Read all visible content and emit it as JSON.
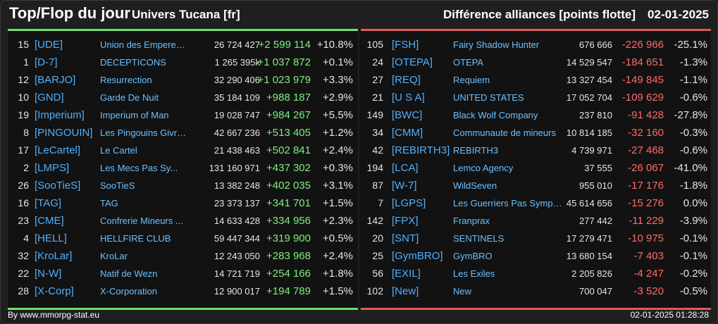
{
  "header": {
    "title": "Top/Flop du jour",
    "universe": "Univers Tucana [fr]",
    "subtitle": "Différence alliances [points flotte]",
    "date": "02-01-2025"
  },
  "colors": {
    "up": "#7cf07c",
    "down": "#ff6a6a",
    "tag": "#4fb0ff",
    "name": "#6cc0ff",
    "top_bar": "#6ee06e",
    "flop_bar": "#e05a5a"
  },
  "top": [
    {
      "rank": "15",
      "tag": "[UDE]",
      "name": "Union des Empereur...",
      "points": "26 724 427",
      "diff": "+2 599 114",
      "pct": "+10.8%"
    },
    {
      "rank": "1",
      "tag": "[D-7]",
      "name": "DECEPTICONS",
      "points": "1 265 395k",
      "diff": "+1 037 872",
      "pct": "+0.1%"
    },
    {
      "rank": "12",
      "tag": "[BARJO]",
      "name": "Resurrection",
      "points": "32 290 406",
      "diff": "+1 023 979",
      "pct": "+3.3%"
    },
    {
      "rank": "10",
      "tag": "[GND]",
      "name": "Garde De Nuit",
      "points": "35 184 109",
      "diff": "+988 187",
      "pct": "+2.9%"
    },
    {
      "rank": "19",
      "tag": "[Imperium]",
      "name": "Imperium of Man",
      "points": "19 028 747",
      "diff": "+984 267",
      "pct": "+5.5%"
    },
    {
      "rank": "8",
      "tag": "[PINGOUIN]",
      "name": "Les Pingouins Givre...",
      "points": "42 667 236",
      "diff": "+513 405",
      "pct": "+1.2%"
    },
    {
      "rank": "17",
      "tag": "[LeCartel]",
      "name": "Le Cartel",
      "points": "21 438 463",
      "diff": "+502 841",
      "pct": "+2.4%"
    },
    {
      "rank": "2",
      "tag": "[LMPS]",
      "name": "Les Mecs Pas Sy...",
      "points": "131 160 971",
      "diff": "+437 302",
      "pct": "+0.3%"
    },
    {
      "rank": "26",
      "tag": "[SooTieS]",
      "name": "SooTieS",
      "points": "13 382 248",
      "diff": "+402 035",
      "pct": "+3.1%"
    },
    {
      "rank": "16",
      "tag": "[TAG]",
      "name": "TAG",
      "points": "23 373 137",
      "diff": "+341 701",
      "pct": "+1.5%"
    },
    {
      "rank": "23",
      "tag": "[CME]",
      "name": "Confrerie Mineurs ...",
      "points": "14 633 428",
      "diff": "+334 956",
      "pct": "+2.3%"
    },
    {
      "rank": "4",
      "tag": "[HELL]",
      "name": "HELLFIRE CLUB",
      "points": "59 447 344",
      "diff": "+319 900",
      "pct": "+0.5%"
    },
    {
      "rank": "32",
      "tag": "[KroLar]",
      "name": "KroLar",
      "points": "12 243 050",
      "diff": "+283 968",
      "pct": "+2.4%"
    },
    {
      "rank": "22",
      "tag": "[N-W]",
      "name": "Natif de Wezn",
      "points": "14 721 719",
      "diff": "+254 166",
      "pct": "+1.8%"
    },
    {
      "rank": "28",
      "tag": "[X-Corp]",
      "name": "X-Corporation",
      "points": "12 900 017",
      "diff": "+194 789",
      "pct": "+1.5%"
    }
  ],
  "flop": [
    {
      "rank": "105",
      "tag": "[FSH]",
      "name": "Fairy Shadow Hunter",
      "points": "676 666",
      "diff": "-226 966",
      "pct": "-25.1%"
    },
    {
      "rank": "24",
      "tag": "[OTEPA]",
      "name": "OTEPA",
      "points": "14 529 547",
      "diff": "-184 651",
      "pct": "-1.3%"
    },
    {
      "rank": "27",
      "tag": "[REQ]",
      "name": "Requiem",
      "points": "13 327 454",
      "diff": "-149 845",
      "pct": "-1.1%"
    },
    {
      "rank": "21",
      "tag": "[U S A]",
      "name": "UNITED STATES",
      "points": "17 052 704",
      "diff": "-109 629",
      "pct": "-0.6%"
    },
    {
      "rank": "149",
      "tag": "[BWC]",
      "name": "Black Wolf Company",
      "points": "237 810",
      "diff": "-91 428",
      "pct": "-27.8%"
    },
    {
      "rank": "34",
      "tag": "[CMM]",
      "name": "Communaute de mineurs",
      "points": "10 814 185",
      "diff": "-32 160",
      "pct": "-0.3%"
    },
    {
      "rank": "42",
      "tag": "[REBIRTH3]",
      "name": "REBIRTH3",
      "points": "4 739 971",
      "diff": "-27 468",
      "pct": "-0.6%"
    },
    {
      "rank": "194",
      "tag": "[LCA]",
      "name": "Lemco Agency",
      "points": "37 555",
      "diff": "-26 067",
      "pct": "-41.0%"
    },
    {
      "rank": "87",
      "tag": "[W-7]",
      "name": "WildSeven",
      "points": "955 010",
      "diff": "-17 176",
      "pct": "-1.8%"
    },
    {
      "rank": "7",
      "tag": "[LGPS]",
      "name": "Les Guerriers Pas Sympas",
      "points": "45 614 656",
      "diff": "-15 276",
      "pct": "0.0%"
    },
    {
      "rank": "142",
      "tag": "[FPX]",
      "name": "Franprax",
      "points": "277 442",
      "diff": "-11 229",
      "pct": "-3.9%"
    },
    {
      "rank": "20",
      "tag": "[SNT]",
      "name": "SENTINELS",
      "points": "17 279 471",
      "diff": "-10 975",
      "pct": "-0.1%"
    },
    {
      "rank": "25",
      "tag": "[GymBRO]",
      "name": "GymBRO",
      "points": "13 680 154",
      "diff": "-7 403",
      "pct": "-0.1%"
    },
    {
      "rank": "56",
      "tag": "[EXIL]",
      "name": "Les Exiles",
      "points": "2 205 826",
      "diff": "-4 247",
      "pct": "-0.2%"
    },
    {
      "rank": "102",
      "tag": "[New]",
      "name": "New",
      "points": "700 047",
      "diff": "-3 520",
      "pct": "-0.5%"
    }
  ],
  "footer": {
    "credit": "By www.mmorpg-stat.eu",
    "timestamp": "02-01-2025 01:28:28"
  }
}
